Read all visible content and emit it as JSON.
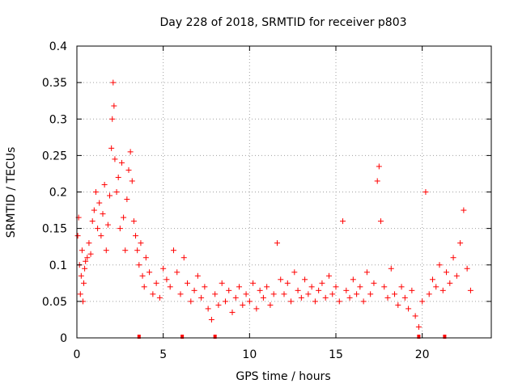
{
  "chart_data": {
    "type": "scatter",
    "title": "Day 228 of 2018, SRMTID for receiver p803",
    "xlabel": "GPS time / hours",
    "ylabel": "SRMTID / TECUs",
    "xlim": [
      0,
      24
    ],
    "ylim": [
      0,
      0.4
    ],
    "xticks": [
      0,
      5,
      10,
      15,
      20
    ],
    "yticks": [
      0,
      0.05,
      0.1,
      0.15,
      0.2,
      0.25,
      0.3,
      0.35,
      0.4
    ],
    "xtick_labels": [
      "0",
      "5",
      "10",
      "15",
      "20"
    ],
    "ytick_labels": [
      "0",
      "0.05",
      "0.1",
      "0.15",
      "0.2",
      "0.25",
      "0.3",
      "0.35",
      "0.4"
    ],
    "grid": true,
    "marker": "+",
    "series_color": "#ff0000",
    "x_range_hours": [
      0,
      22.8
    ],
    "points": [
      [
        0.05,
        0.14
      ],
      [
        0.1,
        0.165
      ],
      [
        0.15,
        0.1
      ],
      [
        0.2,
        0.06
      ],
      [
        0.25,
        0.085
      ],
      [
        0.3,
        0.12
      ],
      [
        0.35,
        0.05
      ],
      [
        0.4,
        0.075
      ],
      [
        0.45,
        0.095
      ],
      [
        0.5,
        0.105
      ],
      [
        0.6,
        0.11
      ],
      [
        0.7,
        0.13
      ],
      [
        0.8,
        0.115
      ],
      [
        0.9,
        0.16
      ],
      [
        1.0,
        0.175
      ],
      [
        1.1,
        0.2
      ],
      [
        1.2,
        0.15
      ],
      [
        1.3,
        0.185
      ],
      [
        1.4,
        0.14
      ],
      [
        1.5,
        0.17
      ],
      [
        1.6,
        0.21
      ],
      [
        1.7,
        0.12
      ],
      [
        1.8,
        0.155
      ],
      [
        1.9,
        0.195
      ],
      [
        2.0,
        0.26
      ],
      [
        2.05,
        0.3
      ],
      [
        2.1,
        0.35
      ],
      [
        2.15,
        0.318
      ],
      [
        2.2,
        0.245
      ],
      [
        2.3,
        0.2
      ],
      [
        2.4,
        0.22
      ],
      [
        2.5,
        0.15
      ],
      [
        2.6,
        0.24
      ],
      [
        2.7,
        0.165
      ],
      [
        2.8,
        0.12
      ],
      [
        2.9,
        0.19
      ],
      [
        3.0,
        0.23
      ],
      [
        3.1,
        0.255
      ],
      [
        3.2,
        0.215
      ],
      [
        3.3,
        0.16
      ],
      [
        3.4,
        0.14
      ],
      [
        3.5,
        0.12
      ],
      [
        3.6,
        0.1
      ],
      [
        3.7,
        0.13
      ],
      [
        3.8,
        0.085
      ],
      [
        3.9,
        0.07
      ],
      [
        4.0,
        0.11
      ],
      [
        4.2,
        0.09
      ],
      [
        4.4,
        0.06
      ],
      [
        4.6,
        0.075
      ],
      [
        4.8,
        0.055
      ],
      [
        5.0,
        0.095
      ],
      [
        5.2,
        0.08
      ],
      [
        5.4,
        0.07
      ],
      [
        5.6,
        0.12
      ],
      [
        5.8,
        0.09
      ],
      [
        6.0,
        0.06
      ],
      [
        6.2,
        0.11
      ],
      [
        6.4,
        0.075
      ],
      [
        6.6,
        0.05
      ],
      [
        6.8,
        0.065
      ],
      [
        7.0,
        0.085
      ],
      [
        7.2,
        0.055
      ],
      [
        7.4,
        0.07
      ],
      [
        7.6,
        0.04
      ],
      [
        7.8,
        0.025
      ],
      [
        8.0,
        0.06
      ],
      [
        8.2,
        0.045
      ],
      [
        8.4,
        0.075
      ],
      [
        8.6,
        0.05
      ],
      [
        8.8,
        0.065
      ],
      [
        9.0,
        0.035
      ],
      [
        9.2,
        0.055
      ],
      [
        9.4,
        0.07
      ],
      [
        9.6,
        0.045
      ],
      [
        9.8,
        0.06
      ],
      [
        10.0,
        0.05
      ],
      [
        10.2,
        0.075
      ],
      [
        10.4,
        0.04
      ],
      [
        10.6,
        0.065
      ],
      [
        10.8,
        0.055
      ],
      [
        11.0,
        0.07
      ],
      [
        11.2,
        0.045
      ],
      [
        11.4,
        0.06
      ],
      [
        11.6,
        0.13
      ],
      [
        11.8,
        0.08
      ],
      [
        12.0,
        0.06
      ],
      [
        12.2,
        0.075
      ],
      [
        12.4,
        0.05
      ],
      [
        12.6,
        0.09
      ],
      [
        12.8,
        0.065
      ],
      [
        13.0,
        0.055
      ],
      [
        13.2,
        0.08
      ],
      [
        13.4,
        0.06
      ],
      [
        13.6,
        0.07
      ],
      [
        13.8,
        0.05
      ],
      [
        14.0,
        0.065
      ],
      [
        14.2,
        0.075
      ],
      [
        14.4,
        0.055
      ],
      [
        14.6,
        0.085
      ],
      [
        14.8,
        0.06
      ],
      [
        15.0,
        0.07
      ],
      [
        15.2,
        0.05
      ],
      [
        15.4,
        0.16
      ],
      [
        15.6,
        0.065
      ],
      [
        15.8,
        0.055
      ],
      [
        16.0,
        0.08
      ],
      [
        16.2,
        0.06
      ],
      [
        16.4,
        0.07
      ],
      [
        16.6,
        0.05
      ],
      [
        16.8,
        0.09
      ],
      [
        17.0,
        0.06
      ],
      [
        17.2,
        0.075
      ],
      [
        17.4,
        0.215
      ],
      [
        17.5,
        0.235
      ],
      [
        17.6,
        0.16
      ],
      [
        17.8,
        0.07
      ],
      [
        18.0,
        0.055
      ],
      [
        18.2,
        0.095
      ],
      [
        18.4,
        0.06
      ],
      [
        18.6,
        0.045
      ],
      [
        18.8,
        0.07
      ],
      [
        19.0,
        0.055
      ],
      [
        19.2,
        0.04
      ],
      [
        19.4,
        0.065
      ],
      [
        19.6,
        0.03
      ],
      [
        19.8,
        0.015
      ],
      [
        20.0,
        0.05
      ],
      [
        20.2,
        0.2
      ],
      [
        20.4,
        0.06
      ],
      [
        20.6,
        0.08
      ],
      [
        20.8,
        0.07
      ],
      [
        21.0,
        0.1
      ],
      [
        21.2,
        0.065
      ],
      [
        21.4,
        0.09
      ],
      [
        21.6,
        0.075
      ],
      [
        21.8,
        0.11
      ],
      [
        22.0,
        0.085
      ],
      [
        22.2,
        0.13
      ],
      [
        22.4,
        0.175
      ],
      [
        22.6,
        0.095
      ],
      [
        22.8,
        0.065
      ]
    ],
    "bottom_marks_x": [
      3.6,
      6.1,
      8.0,
      19.8,
      21.3
    ]
  }
}
